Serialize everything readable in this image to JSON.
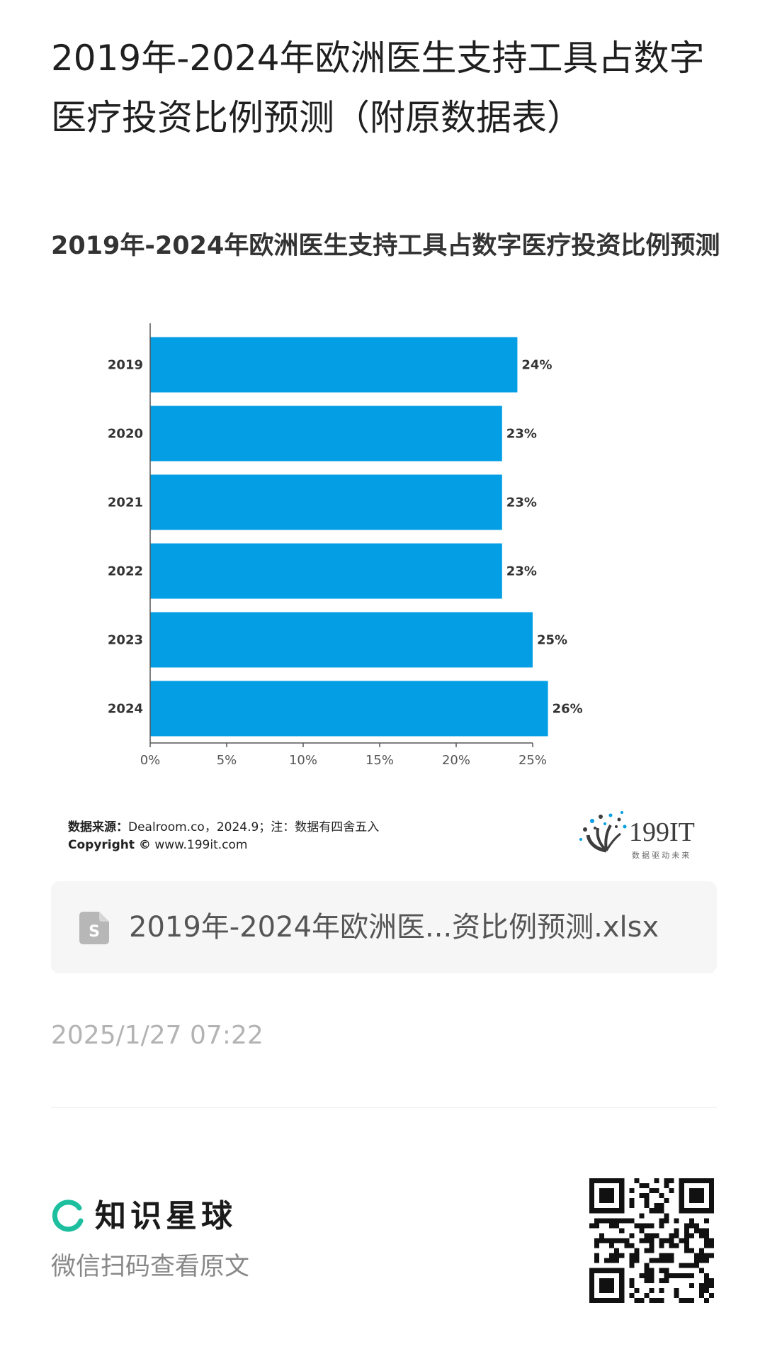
{
  "page": {
    "title": "2019年-2024年欧洲医生支持工具占数字医疗投资比例预测（附原数据表）"
  },
  "chart_data": {
    "type": "bar",
    "orientation": "horizontal",
    "title": "2019年-2024年欧洲医生支持工具占数字医疗投资比例预测",
    "categories": [
      "2019",
      "2020",
      "2021",
      "2022",
      "2023",
      "2024"
    ],
    "values": [
      24,
      23,
      23,
      23,
      25,
      26
    ],
    "value_labels": [
      "24%",
      "23%",
      "23%",
      "23%",
      "25%",
      "26%"
    ],
    "xlim": [
      0,
      25
    ],
    "x_ticks": [
      "0%",
      "5%",
      "10%",
      "15%",
      "20%",
      "25%"
    ],
    "grid": false,
    "legend": "none",
    "bar_color": "#049ee4",
    "source_label": "数据来源：",
    "source_text": "Dealroom.co，2024.9；注：数据有四舍五入",
    "copyright_label": "Copyright ©",
    "copyright_text": " www.199it.com",
    "logo": {
      "name": "199IT",
      "tagline": "数 据 驱 动 未 来"
    }
  },
  "file": {
    "name": "2019年-2024年欧洲医...资比例预测.xlsx",
    "icon": "spreadsheet-file-icon"
  },
  "timestamp": "2025/1/27 07:22",
  "footer": {
    "brand_name": "知识星球",
    "brand_icon": "zsxq-logo-icon",
    "accent_color": "#1dbf9e",
    "scan_hint": "微信扫码查看原文"
  }
}
